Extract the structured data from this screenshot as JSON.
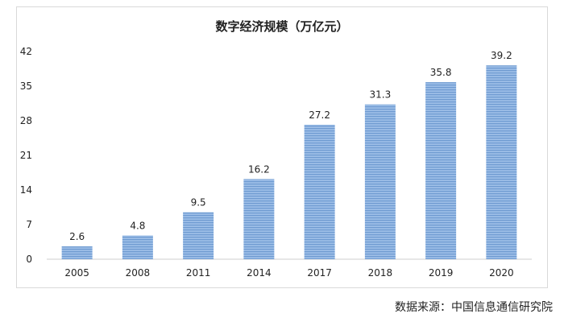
{
  "chart_data": {
    "type": "bar",
    "title": "数字经济规模（万亿元）",
    "categories": [
      "2005",
      "2008",
      "2011",
      "2014",
      "2017",
      "2018",
      "2019",
      "2020"
    ],
    "values": [
      2.6,
      4.8,
      9.5,
      16.2,
      27.2,
      31.3,
      35.8,
      39.2
    ],
    "data_labels": [
      "2.6",
      "4.8",
      "9.5",
      "16.2",
      "27.2",
      "31.3",
      "35.8",
      "39.2"
    ],
    "yticks": [
      0,
      7,
      14,
      21,
      28,
      35,
      42
    ],
    "ylim": [
      0,
      42
    ],
    "xlabel": "",
    "ylabel": "",
    "grid": false,
    "bar_color": "#8db3e2",
    "bar_stripe_color": "#6f9bd1"
  },
  "source": "数据来源：中国信息通信研究院"
}
